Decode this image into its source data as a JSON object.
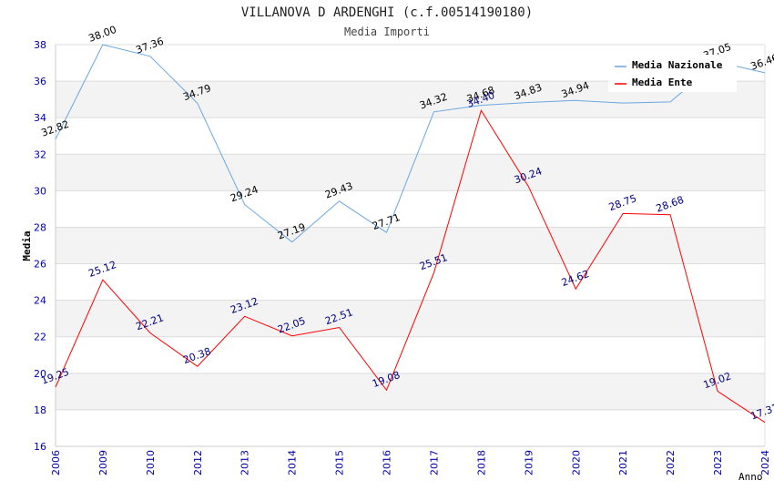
{
  "chart_data": {
    "type": "line",
    "title": "VILLANOVA D ARDENGHI (c.f.00514190180)",
    "subtitle": "Media Importi",
    "xlabel": "Anno",
    "ylabel": "Media",
    "ylim": [
      16,
      38
    ],
    "yticks": [
      "16",
      "18",
      "20",
      "22",
      "24",
      "26",
      "28",
      "30",
      "32",
      "34",
      "36",
      "38"
    ],
    "categories": [
      "2006",
      "2009",
      "2010",
      "2012",
      "2013",
      "2014",
      "2015",
      "2016",
      "2017",
      "2018",
      "2019",
      "2020",
      "2021",
      "2022",
      "2023",
      "2024"
    ],
    "series": [
      {
        "name": "Media Nazionale",
        "color": "#6aa7e0",
        "label_color": "#000000",
        "values": [
          32.82,
          38.0,
          37.36,
          34.79,
          29.24,
          27.19,
          29.43,
          27.71,
          34.32,
          34.68,
          34.83,
          34.94,
          34.8,
          34.86,
          37.05,
          36.46
        ],
        "labels": [
          "32.82",
          "38.00",
          "37.36",
          "34.79",
          "29.24",
          "27.19",
          "29.43",
          "27.71",
          "34.32",
          "34.68",
          "34.83",
          "34.94",
          "",
          "",
          "37.05",
          "36.46"
        ]
      },
      {
        "name": "Media Ente",
        "color": "#ff0000",
        "label_color": "#000080",
        "values": [
          19.25,
          25.12,
          22.21,
          20.38,
          23.12,
          22.05,
          22.51,
          19.08,
          25.51,
          34.4,
          30.24,
          24.62,
          28.75,
          28.68,
          19.02,
          17.31
        ],
        "labels": [
          "19.25",
          "25.12",
          "22.21",
          "20.38",
          "23.12",
          "22.05",
          "22.51",
          "19.08",
          "25.51",
          "34.40",
          "30.24",
          "24.62",
          "28.75",
          "28.68",
          "19.02",
          "17.31"
        ]
      }
    ],
    "legend_position": "top-right",
    "grid": true
  }
}
